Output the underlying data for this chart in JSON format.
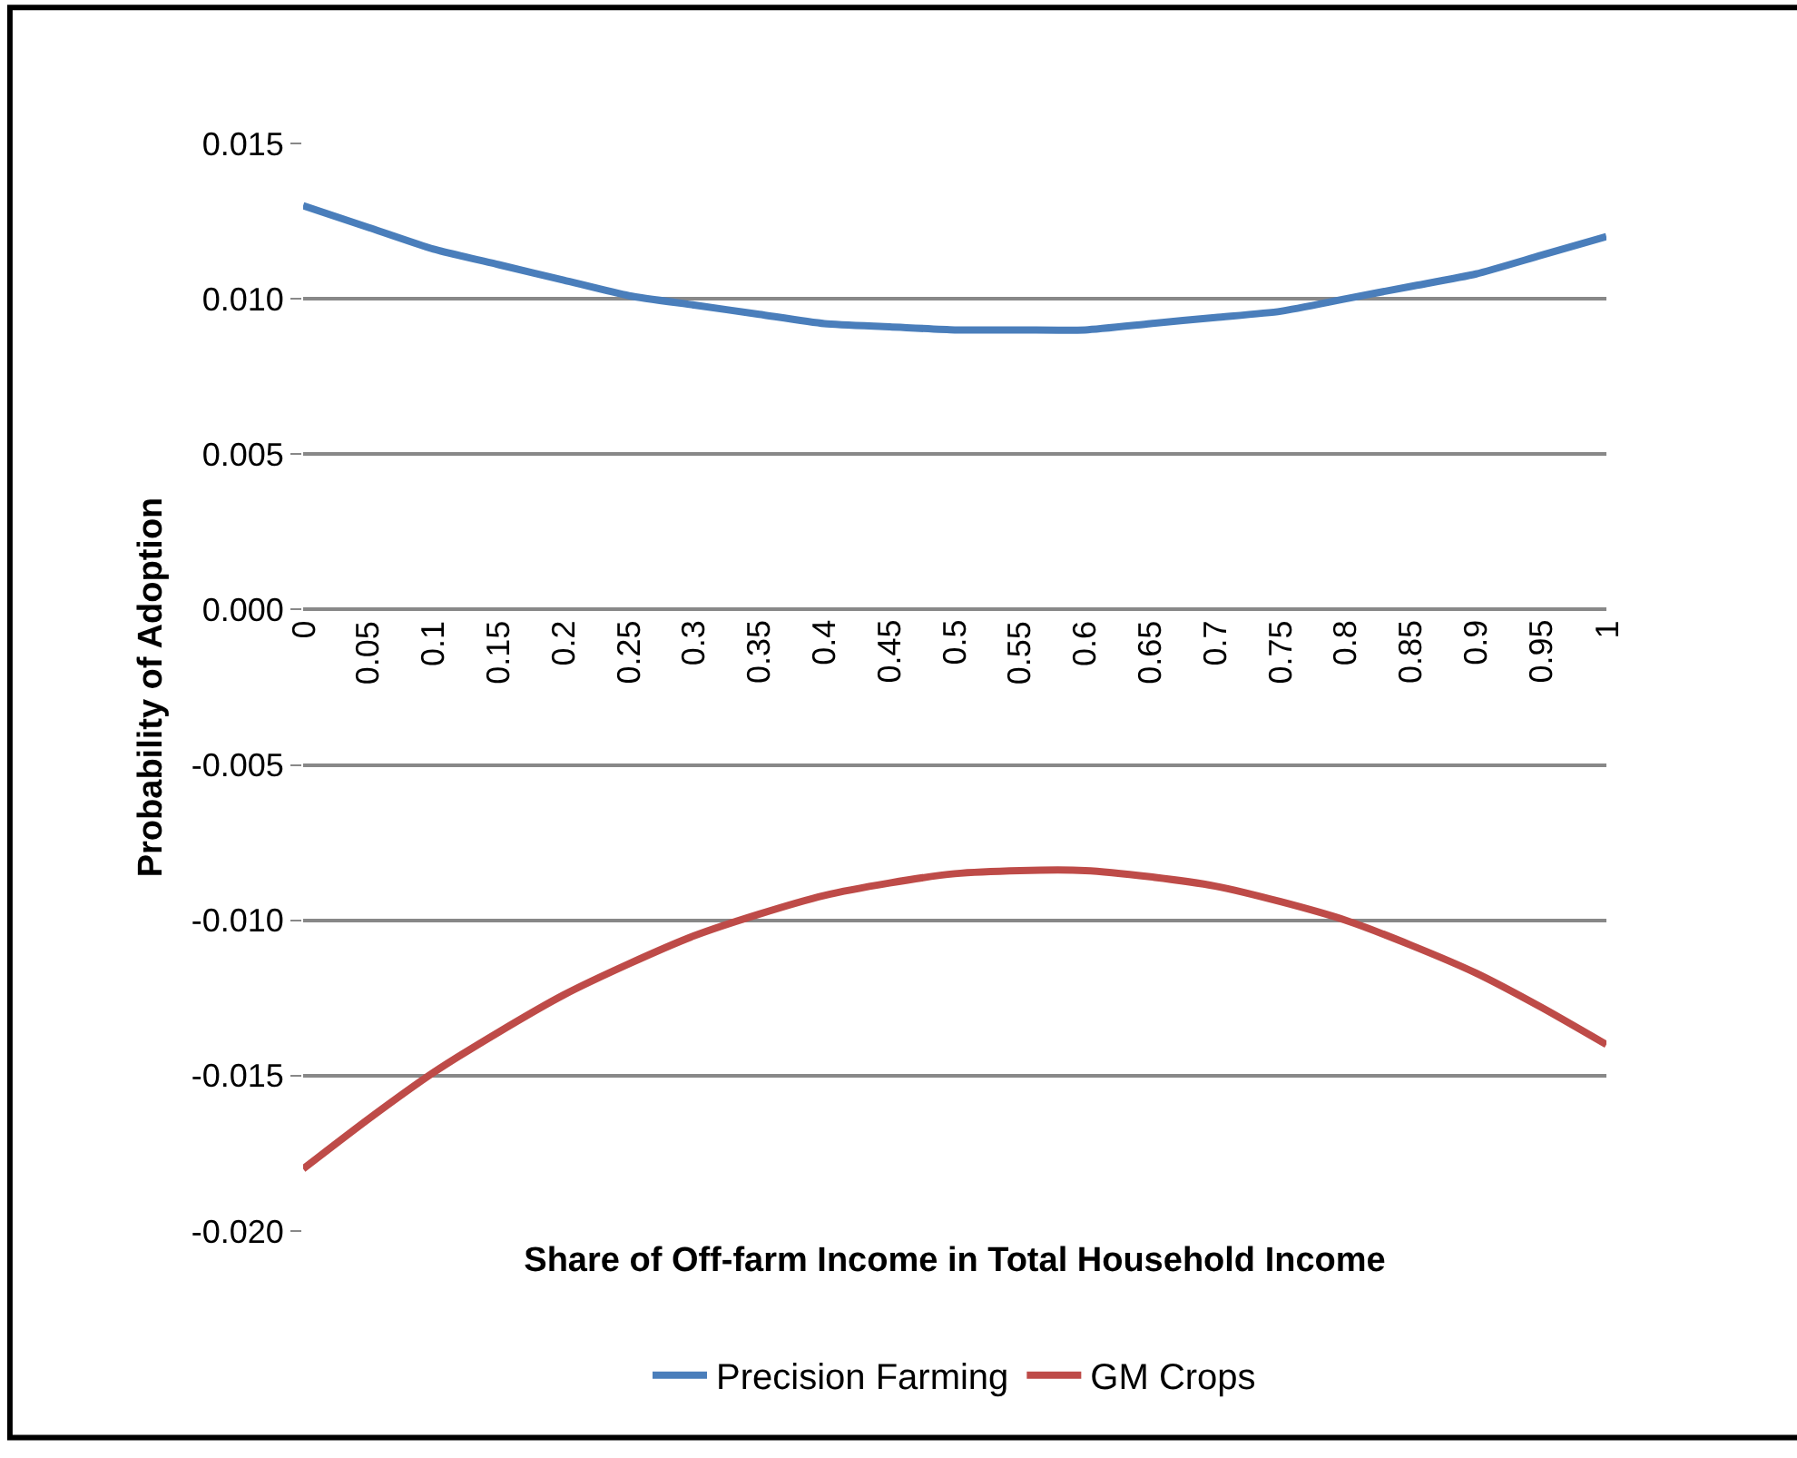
{
  "chart_data": {
    "type": "line",
    "xlabel": "Share of Off-farm Income in Total Household Income",
    "ylabel": "Probability of Adoption",
    "categories": [
      "0",
      "0.05",
      "0.1",
      "0.15",
      "0.2",
      "0.25",
      "0.3",
      "0.35",
      "0.4",
      "0.45",
      "0.5",
      "0.55",
      "0.6",
      "0.65",
      "0.7",
      "0.75",
      "0.8",
      "0.85",
      "0.9",
      "0.95",
      "1"
    ],
    "series": [
      {
        "name": "Precision Farming",
        "color": "#4a7ebb",
        "values": [
          0.013,
          0.0123,
          0.0116,
          0.0111,
          0.0106,
          0.0101,
          0.0098,
          0.0095,
          0.0092,
          0.0091,
          0.009,
          0.009,
          0.009,
          0.0092,
          0.0094,
          0.0096,
          0.01,
          0.0104,
          0.0108,
          0.0114,
          0.012
        ]
      },
      {
        "name": "GM Crops",
        "color": "#be4b48",
        "values": [
          -0.018,
          -0.0164,
          -0.0149,
          -0.0136,
          -0.0124,
          -0.0114,
          -0.0105,
          -0.0098,
          -0.0092,
          -0.0088,
          -0.0085,
          -0.0084,
          -0.0084,
          -0.0086,
          -0.0089,
          -0.0094,
          -0.01,
          -0.0108,
          -0.0117,
          -0.0128,
          -0.014
        ]
      }
    ],
    "ylim": [
      -0.02,
      0.015
    ],
    "yticks": [
      {
        "value": -0.02,
        "label": "-0.020"
      },
      {
        "value": -0.015,
        "label": "-0.015"
      },
      {
        "value": -0.01,
        "label": "-0.010"
      },
      {
        "value": -0.005,
        "label": "-0.005"
      },
      {
        "value": 0,
        "label": "0.000"
      },
      {
        "value": 0.005,
        "label": "0.005"
      },
      {
        "value": 0.01,
        "label": "0.010"
      },
      {
        "value": 0.015,
        "label": "0.015"
      }
    ],
    "grid": "y",
    "legend": "bottom",
    "marker": "none",
    "line_style": "solid"
  }
}
